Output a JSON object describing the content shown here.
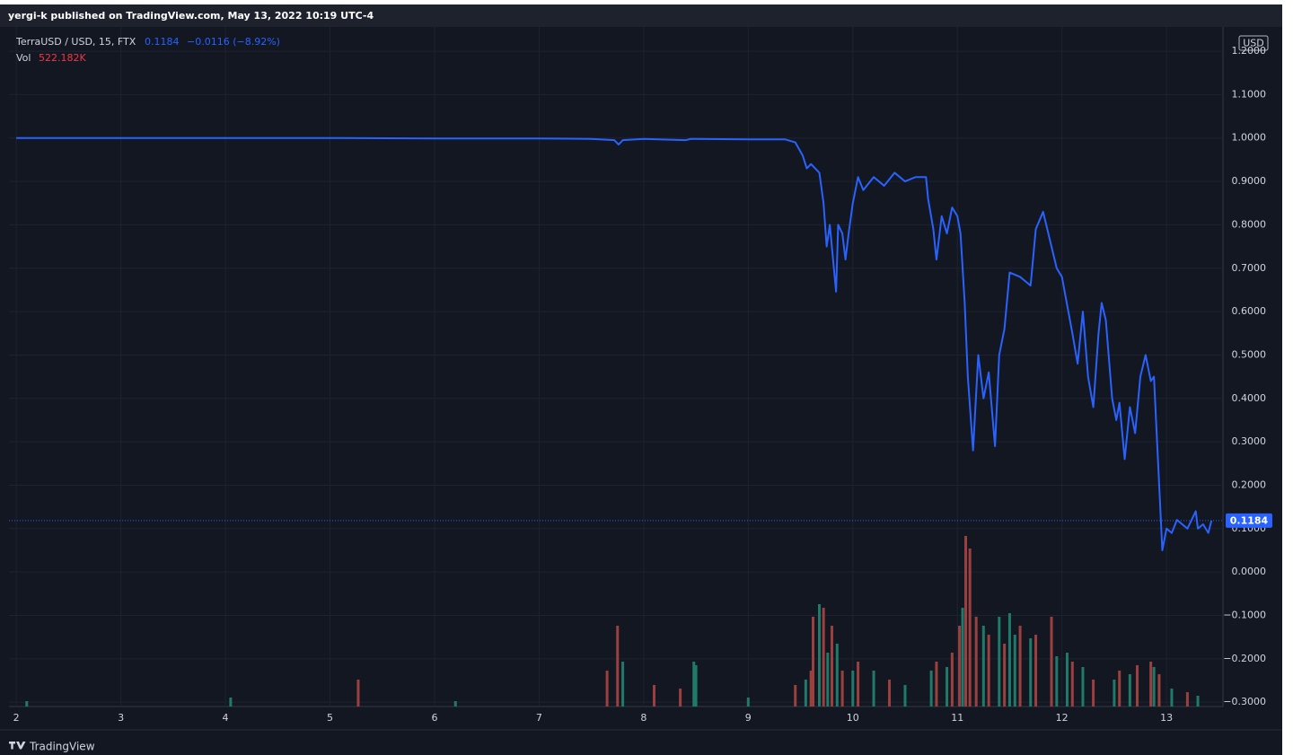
{
  "header": {
    "published": "yergi-k published on TradingView.com, May 13, 2022 10:19 UTC-4",
    "symbol": "TerraUSD / USD, 15, FTX",
    "change_label": "−0.0116 (−8.92%)",
    "vol_label": "Vol",
    "vol_value": "522.182K",
    "currency": "USD",
    "footer": "TradingView"
  },
  "chart_data": {
    "type": "line",
    "x": [
      2.0,
      3.0,
      4.0,
      5.0,
      6.0,
      7.0,
      7.5,
      7.72,
      7.76,
      7.8,
      8.0,
      8.4,
      8.45,
      8.5,
      9.0,
      9.35,
      9.45,
      9.52,
      9.56,
      9.6,
      9.64,
      9.68,
      9.72,
      9.75,
      9.78,
      9.84,
      9.86,
      9.9,
      9.93,
      9.96,
      10.0,
      10.05,
      10.1,
      10.2,
      10.3,
      10.4,
      10.5,
      10.6,
      10.7,
      10.72,
      10.77,
      10.8,
      10.85,
      10.9,
      10.95,
      11.0,
      11.03,
      11.07,
      11.1,
      11.15,
      11.2,
      11.25,
      11.3,
      11.36,
      11.4,
      11.45,
      11.5,
      11.6,
      11.7,
      11.75,
      11.82,
      11.9,
      11.95,
      12.0,
      12.1,
      12.15,
      12.2,
      12.25,
      12.3,
      12.35,
      12.38,
      12.42,
      12.48,
      12.52,
      12.55,
      12.6,
      12.65,
      12.7,
      12.75,
      12.8,
      12.85,
      12.88,
      12.92,
      12.96,
      13.0,
      13.05,
      13.1,
      13.2,
      13.28,
      13.3,
      13.35,
      13.4,
      13.43
    ],
    "values": [
      1.0,
      1.0,
      1.0,
      1.0,
      0.999,
      0.999,
      0.998,
      0.995,
      0.985,
      0.995,
      0.998,
      0.995,
      0.998,
      0.998,
      0.997,
      0.997,
      0.99,
      0.96,
      0.93,
      0.94,
      0.93,
      0.92,
      0.85,
      0.75,
      0.8,
      0.646,
      0.8,
      0.78,
      0.72,
      0.78,
      0.85,
      0.91,
      0.88,
      0.91,
      0.89,
      0.92,
      0.9,
      0.91,
      0.91,
      0.86,
      0.79,
      0.72,
      0.82,
      0.78,
      0.84,
      0.82,
      0.78,
      0.62,
      0.45,
      0.28,
      0.5,
      0.4,
      0.46,
      0.29,
      0.5,
      0.56,
      0.69,
      0.68,
      0.66,
      0.79,
      0.83,
      0.75,
      0.7,
      0.68,
      0.55,
      0.48,
      0.6,
      0.45,
      0.38,
      0.55,
      0.62,
      0.58,
      0.4,
      0.35,
      0.39,
      0.26,
      0.38,
      0.32,
      0.45,
      0.5,
      0.44,
      0.45,
      0.25,
      0.05,
      0.1,
      0.09,
      0.12,
      0.1,
      0.14,
      0.1,
      0.11,
      0.09,
      0.1184
    ],
    "color": "#2962ff",
    "last_price": 0.1184,
    "xlim": [
      1.93,
      13.54
    ],
    "xticks": [
      2,
      3,
      4,
      5,
      6,
      7,
      8,
      9,
      10,
      11,
      12,
      13
    ],
    "ylim": [
      -0.31,
      1.256
    ],
    "yticks": [
      {
        "value": 1.2,
        "label": "1.2000"
      },
      {
        "value": 1.1,
        "label": "1.1000"
      },
      {
        "value": 1.0,
        "label": "1.0000"
      },
      {
        "value": 0.9,
        "label": "0.9000"
      },
      {
        "value": 0.8,
        "label": "0.8000"
      },
      {
        "value": 0.7,
        "label": "0.7000"
      },
      {
        "value": 0.6,
        "label": "0.6000"
      },
      {
        "value": 0.5,
        "label": "0.5000"
      },
      {
        "value": 0.4,
        "label": "0.4000"
      },
      {
        "value": 0.3,
        "label": "0.3000"
      },
      {
        "value": 0.2,
        "label": "0.2000"
      },
      {
        "value": 0.1,
        "label": "0.1000"
      },
      {
        "value": 0,
        "label": "0.0000"
      },
      {
        "value": -0.1,
        "label": "−0.1000"
      },
      {
        "value": -0.2,
        "label": "−0.2000"
      },
      {
        "value": -0.3,
        "label": "−0.3000"
      }
    ],
    "grid": true,
    "volume": {
      "ylim": [
        0,
        100
      ],
      "up": {
        "color": "#1f7a6a",
        "x": [
          2.1,
          4.05,
          6.2,
          7.8,
          8.48,
          8.5,
          9.0,
          9.55,
          9.68,
          9.76,
          9.85,
          10.0,
          10.2,
          10.5,
          10.75,
          10.9,
          11.05,
          11.25,
          11.4,
          11.5,
          11.55,
          11.7,
          11.95,
          12.05,
          12.2,
          12.5,
          12.65,
          12.88,
          13.05,
          13.3
        ],
        "values": [
          3,
          5,
          3,
          25,
          25,
          23,
          5,
          15,
          57,
          30,
          35,
          20,
          20,
          12,
          20,
          22,
          55,
          45,
          50,
          52,
          40,
          38,
          28,
          30,
          22,
          15,
          18,
          22,
          10,
          6
        ]
      },
      "down": {
        "color": "#9c3f3f",
        "x": [
          5.27,
          7.65,
          7.75,
          8.1,
          8.35,
          9.45,
          9.6,
          9.62,
          9.72,
          9.8,
          9.9,
          10.05,
          10.35,
          10.8,
          10.95,
          11.02,
          11.08,
          11.12,
          11.18,
          11.3,
          11.45,
          11.6,
          11.75,
          11.9,
          12.1,
          12.3,
          12.55,
          12.72,
          12.85,
          12.93,
          13.2
        ],
        "values": [
          15,
          20,
          45,
          12,
          10,
          12,
          20,
          50,
          55,
          45,
          20,
          25,
          15,
          25,
          30,
          45,
          95,
          88,
          50,
          40,
          35,
          45,
          40,
          50,
          25,
          15,
          20,
          23,
          25,
          18,
          8
        ]
      }
    }
  }
}
